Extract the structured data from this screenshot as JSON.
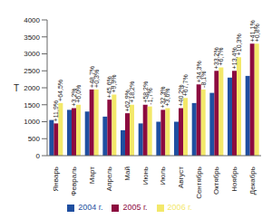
{
  "chart_data": {
    "type": "bar",
    "y_label": "Т",
    "categories": [
      "Январь",
      "Февраль",
      "Март",
      "Апрель",
      "Май",
      "Июнь",
      "Июль",
      "Август",
      "Сентябрь",
      "Октябрь",
      "Ноябрь",
      "Декабрь"
    ],
    "series": [
      {
        "name": "2004 г.",
        "color": "#1f4fa0",
        "values": [
          1050,
          1350,
          1300,
          1150,
          750,
          950,
          1000,
          1000,
          1550,
          1850,
          2300,
          2350
        ]
      },
      {
        "name": "2005 г.",
        "color": "#8c0b3f",
        "values": [
          950,
          1400,
          1950,
          1650,
          1250,
          1500,
          1350,
          1400,
          2100,
          2500,
          2500,
          3300
        ]
      },
      {
        "name": "2006 г.",
        "color": "#f3e86a",
        "values": [
          1550,
          1500,
          1950,
          1800,
          1500,
          1450,
          1400,
          1700,
          1950,
          2600,
          2900,
          3300
        ]
      }
    ],
    "annotations": [
      [
        "+11,9%",
        "+64,5%"
      ],
      [
        "+3,2%",
        "+6,0%"
      ],
      [
        "+48,7%",
        "+0,3%"
      ],
      [
        "+45,6%",
        "+9,9%"
      ],
      [
        "+62,9%",
        "+18,2%"
      ],
      [
        "+58,2%",
        "-1,7%"
      ],
      [
        "+32,3%",
        "+3,6%"
      ],
      [
        "+40,2%",
        "+67,7%"
      ],
      [
        "+34,3%",
        "-8,1%"
      ],
      [
        "+33,2%",
        "+6,7%"
      ],
      [
        "+13,4%",
        "+10,3%"
      ],
      [
        "+41,1%",
        "+0,8%"
      ]
    ],
    "ylim": [
      0,
      4000
    ],
    "yticks": [
      0,
      500,
      1000,
      1500,
      2000,
      2500,
      3000,
      3500,
      4000
    ],
    "grid": false,
    "legend": "bottom"
  }
}
